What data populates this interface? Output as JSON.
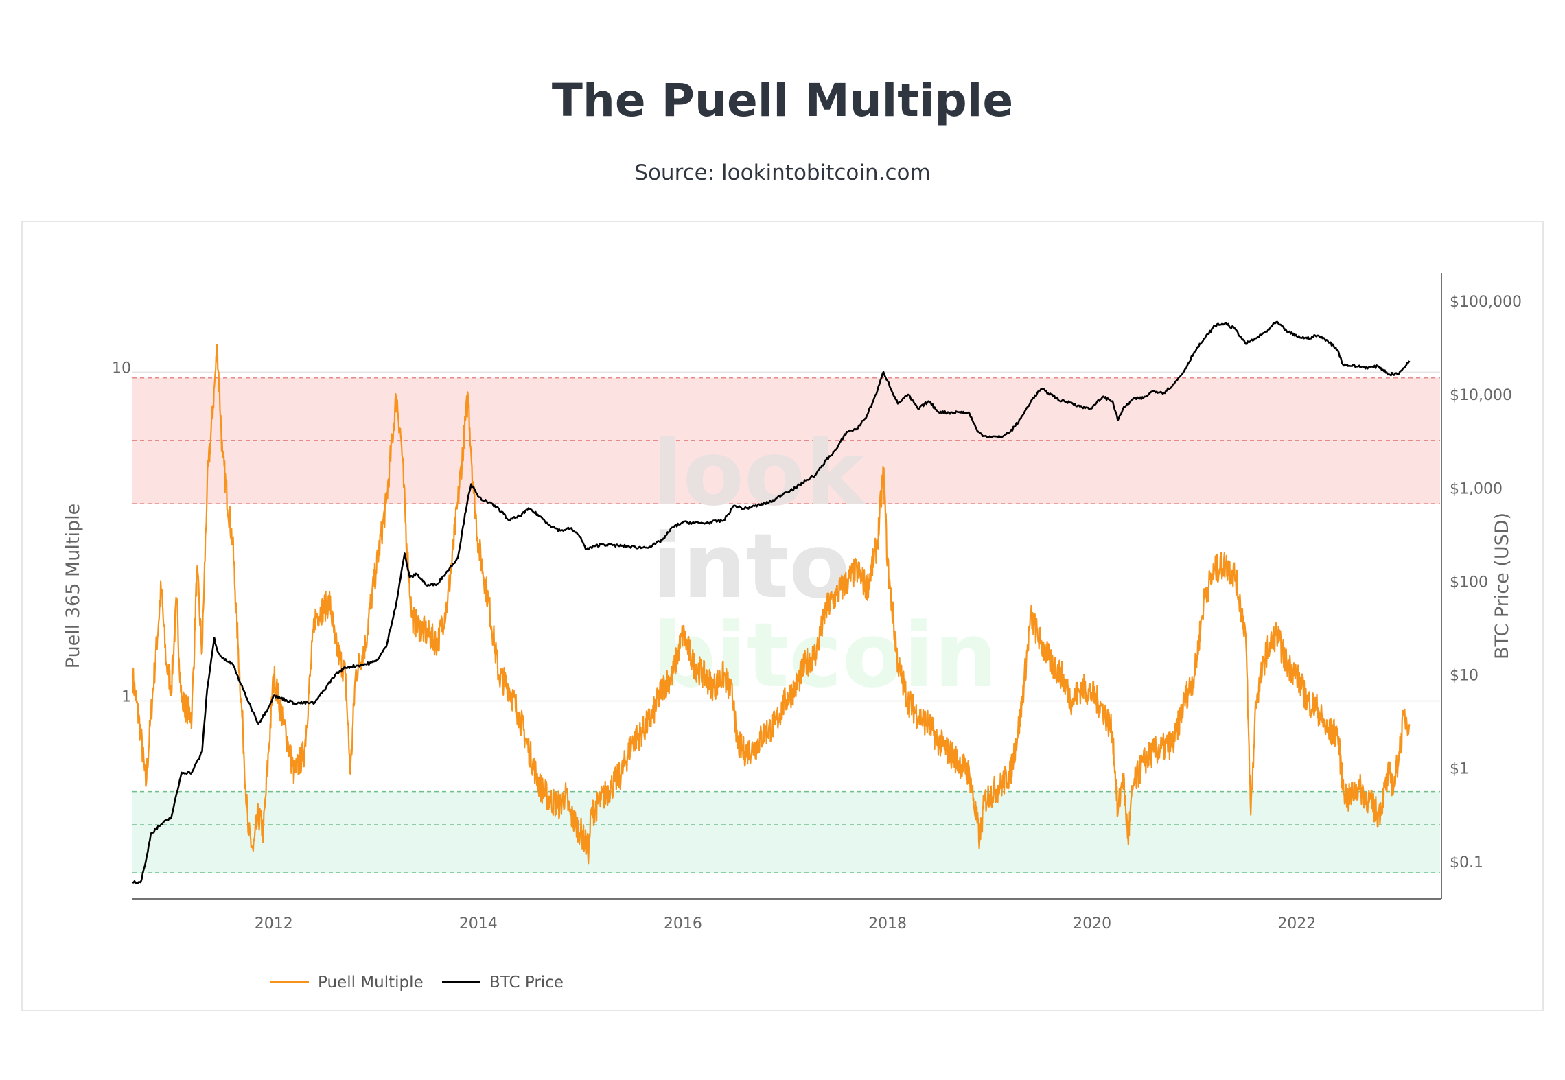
{
  "title": "The Puell Multiple",
  "subtitle": "Source: lookintobitcoin.com",
  "watermark": [
    "look",
    "into",
    "bitcoin"
  ],
  "colors": {
    "puell": "#f7931a",
    "price": "#000000",
    "sell_zone": "#fde2e2",
    "buy_zone": "#e6f8ef",
    "sell_line": "#e88a8a",
    "buy_line": "#6fbf8a"
  },
  "chart_data": {
    "type": "line",
    "xlabel": "",
    "ylabel_left": "Puell 365 Multiple",
    "ylabel_right": "BTC Price (USD)",
    "x_ticks": [
      "2012",
      "2014",
      "2016",
      "2018",
      "2020",
      "2022"
    ],
    "y_left_ticks": [
      "1",
      "10"
    ],
    "y_right_ticks": [
      "$0.1",
      "$1",
      "$10",
      "$100",
      "$1,000",
      "$10,000",
      "$100,000"
    ],
    "xlim": [
      2010.62,
      2023.4
    ],
    "y_left_scale": "log",
    "y_right_scale": "log",
    "ylim_left": [
      0.25,
      20
    ],
    "ylim_right": [
      0.04,
      200000
    ],
    "bands": {
      "top": {
        "low": 3.98,
        "high": 9.6,
        "mid": 6.2
      },
      "bottom": {
        "low": 0.3,
        "high": 0.53,
        "mid": 0.42
      }
    },
    "legend": [
      "Puell Multiple",
      "BTC Price"
    ],
    "legend_position": "bottom-left",
    "series": [
      {
        "name": "Puell Multiple",
        "axis": "left",
        "x": [
          2010.62,
          2010.7,
          2010.75,
          2010.8,
          2010.9,
          2010.95,
          2011.0,
          2011.05,
          2011.1,
          2011.2,
          2011.25,
          2011.3,
          2011.35,
          2011.42,
          2011.45,
          2011.5,
          2011.6,
          2011.65,
          2011.7,
          2011.75,
          2011.8,
          2011.85,
          2011.9,
          2011.95,
          2012.0,
          2012.1,
          2012.2,
          2012.3,
          2012.4,
          2012.55,
          2012.6,
          2012.7,
          2012.75,
          2012.8,
          2012.9,
          2012.95,
          2013.0,
          2013.1,
          2013.2,
          2013.25,
          2013.3,
          2013.35,
          2013.4,
          2013.5,
          2013.6,
          2013.7,
          2013.8,
          2013.9,
          2013.95,
          2014.0,
          2014.1,
          2014.2,
          2014.3,
          2014.4,
          2014.5,
          2014.6,
          2014.7,
          2014.8,
          2014.85,
          2014.9,
          2015.0,
          2015.08,
          2015.1,
          2015.2,
          2015.3,
          2015.4,
          2015.5,
          2015.6,
          2015.7,
          2015.8,
          2015.9,
          2016.0,
          2016.1,
          2016.2,
          2016.3,
          2016.4,
          2016.5,
          2016.52,
          2016.6,
          2016.7,
          2016.8,
          2016.9,
          2017.0,
          2017.1,
          2017.2,
          2017.3,
          2017.4,
          2017.5,
          2017.6,
          2017.7,
          2017.8,
          2017.9,
          2017.96,
          2018.0,
          2018.1,
          2018.2,
          2018.3,
          2018.4,
          2018.5,
          2018.6,
          2018.7,
          2018.8,
          2018.9,
          2018.95,
          2019.0,
          2019.1,
          2019.2,
          2019.3,
          2019.4,
          2019.5,
          2019.6,
          2019.7,
          2019.8,
          2019.9,
          2020.0,
          2020.1,
          2020.2,
          2020.25,
          2020.3,
          2020.35,
          2020.4,
          2020.5,
          2020.6,
          2020.7,
          2020.8,
          2020.9,
          2021.0,
          2021.1,
          2021.2,
          2021.3,
          2021.4,
          2021.5,
          2021.55,
          2021.6,
          2021.7,
          2021.8,
          2021.9,
          2022.0,
          2022.1,
          2022.2,
          2022.3,
          2022.4,
          2022.45,
          2022.5,
          2022.6,
          2022.7,
          2022.8,
          2022.9,
          2022.95,
          2023.0,
          2023.05,
          2023.1
        ],
        "values": [
          1.2,
          0.8,
          0.55,
          0.9,
          2.2,
          1.3,
          1.1,
          2.0,
          1.0,
          0.9,
          2.5,
          1.4,
          4.5,
          9.0,
          12.0,
          5.5,
          3.0,
          1.5,
          0.8,
          0.4,
          0.35,
          0.45,
          0.4,
          0.7,
          1.2,
          0.85,
          0.6,
          0.7,
          1.8,
          2.0,
          1.5,
          1.2,
          0.6,
          1.2,
          1.5,
          2.0,
          2.5,
          4.0,
          8.5,
          6.0,
          3.0,
          1.8,
          1.7,
          1.6,
          1.5,
          2.0,
          4.0,
          8.5,
          4.5,
          3.0,
          2.0,
          1.2,
          1.1,
          0.9,
          0.7,
          0.55,
          0.5,
          0.48,
          0.52,
          0.45,
          0.4,
          0.35,
          0.45,
          0.5,
          0.55,
          0.6,
          0.75,
          0.8,
          0.9,
          1.1,
          1.2,
          1.6,
          1.3,
          1.2,
          1.1,
          1.2,
          1.0,
          0.75,
          0.7,
          0.72,
          0.8,
          0.85,
          1.0,
          1.1,
          1.3,
          1.4,
          1.9,
          2.1,
          2.3,
          2.5,
          2.2,
          3.0,
          5.0,
          2.6,
          1.3,
          1.0,
          0.9,
          0.85,
          0.75,
          0.7,
          0.65,
          0.6,
          0.38,
          0.5,
          0.52,
          0.55,
          0.6,
          0.9,
          1.8,
          1.5,
          1.3,
          1.2,
          1.0,
          1.1,
          1.05,
          0.95,
          0.8,
          0.45,
          0.6,
          0.38,
          0.55,
          0.65,
          0.7,
          0.72,
          0.75,
          1.0,
          1.2,
          2.1,
          2.5,
          2.6,
          2.4,
          1.6,
          0.45,
          1.0,
          1.4,
          1.6,
          1.3,
          1.2,
          1.0,
          0.95,
          0.8,
          0.8,
          0.55,
          0.5,
          0.55,
          0.5,
          0.45,
          0.6,
          0.55,
          0.7,
          0.9,
          0.85
        ]
      },
      {
        "name": "BTC Price",
        "axis": "right",
        "x": [
          2010.62,
          2010.7,
          2010.75,
          2010.8,
          2010.9,
          2011.0,
          2011.1,
          2011.2,
          2011.3,
          2011.35,
          2011.42,
          2011.45,
          2011.5,
          2011.6,
          2011.7,
          2011.8,
          2011.85,
          2011.95,
          2012.0,
          2012.2,
          2012.4,
          2012.6,
          2012.7,
          2012.9,
          2013.0,
          2013.1,
          2013.2,
          2013.28,
          2013.33,
          2013.4,
          2013.5,
          2013.6,
          2013.7,
          2013.8,
          2013.9,
          2013.93,
          2014.0,
          2014.1,
          2014.2,
          2014.3,
          2014.4,
          2014.5,
          2014.6,
          2014.7,
          2014.8,
          2014.9,
          2015.0,
          2015.05,
          2015.2,
          2015.4,
          2015.6,
          2015.7,
          2015.8,
          2015.9,
          2016.0,
          2016.2,
          2016.4,
          2016.5,
          2016.6,
          2016.8,
          2016.9,
          2017.0,
          2017.1,
          2017.2,
          2017.3,
          2017.4,
          2017.5,
          2017.6,
          2017.7,
          2017.8,
          2017.9,
          2017.96,
          2018.0,
          2018.1,
          2018.2,
          2018.3,
          2018.4,
          2018.5,
          2018.6,
          2018.7,
          2018.8,
          2018.88,
          2018.95,
          2019.1,
          2019.2,
          2019.3,
          2019.4,
          2019.5,
          2019.6,
          2019.7,
          2019.8,
          2019.9,
          2020.0,
          2020.1,
          2020.2,
          2020.25,
          2020.3,
          2020.4,
          2020.5,
          2020.6,
          2020.7,
          2020.8,
          2020.9,
          2021.0,
          2021.1,
          2021.2,
          2021.3,
          2021.4,
          2021.5,
          2021.6,
          2021.7,
          2021.8,
          2021.9,
          2022.0,
          2022.1,
          2022.2,
          2022.3,
          2022.4,
          2022.45,
          2022.6,
          2022.7,
          2022.8,
          2022.9,
          2023.0,
          2023.1
        ],
        "values": [
          0.06,
          0.06,
          0.1,
          0.2,
          0.25,
          0.3,
          0.9,
          0.9,
          1.5,
          7.0,
          25.0,
          18.0,
          15.0,
          13.0,
          7.0,
          4.0,
          3.0,
          4.5,
          6.0,
          5.0,
          5.0,
          10.0,
          12.0,
          13.0,
          14.0,
          20.0,
          60.0,
          200.0,
          110.0,
          120.0,
          90.0,
          95.0,
          130.0,
          180.0,
          800.0,
          1100.0,
          800.0,
          700.0,
          600.0,
          450.0,
          500.0,
          600.0,
          500.0,
          400.0,
          350.0,
          370.0,
          300.0,
          220.0,
          250.0,
          240.0,
          230.0,
          240.0,
          280.0,
          380.0,
          430.0,
          420.0,
          450.0,
          650.0,
          600.0,
          680.0,
          750.0,
          900.0,
          1000.0,
          1200.0,
          1400.0,
          2000.0,
          2600.0,
          4000.0,
          4300.0,
          6000.0,
          11000.0,
          17500.0,
          14000.0,
          8000.0,
          10000.0,
          7000.0,
          8500.0,
          6500.0,
          6400.0,
          6500.0,
          6300.0,
          4000.0,
          3600.0,
          3500.0,
          4000.0,
          5500.0,
          8500.0,
          11500.0,
          10000.0,
          8500.0,
          8200.0,
          7300.0,
          7200.0,
          9500.0,
          8500.0,
          5300.0,
          7000.0,
          9000.0,
          9200.0,
          11000.0,
          10500.0,
          13000.0,
          18000.0,
          29000.0,
          40000.0,
          55000.0,
          58000.0,
          50000.0,
          35000.0,
          40000.0,
          47000.0,
          60000.0,
          48000.0,
          42000.0,
          40000.0,
          43000.0,
          38000.0,
          30000.0,
          21000.0,
          20000.0,
          19500.0,
          20000.0,
          16500.0,
          16800.0,
          23000.0
        ]
      }
    ]
  }
}
